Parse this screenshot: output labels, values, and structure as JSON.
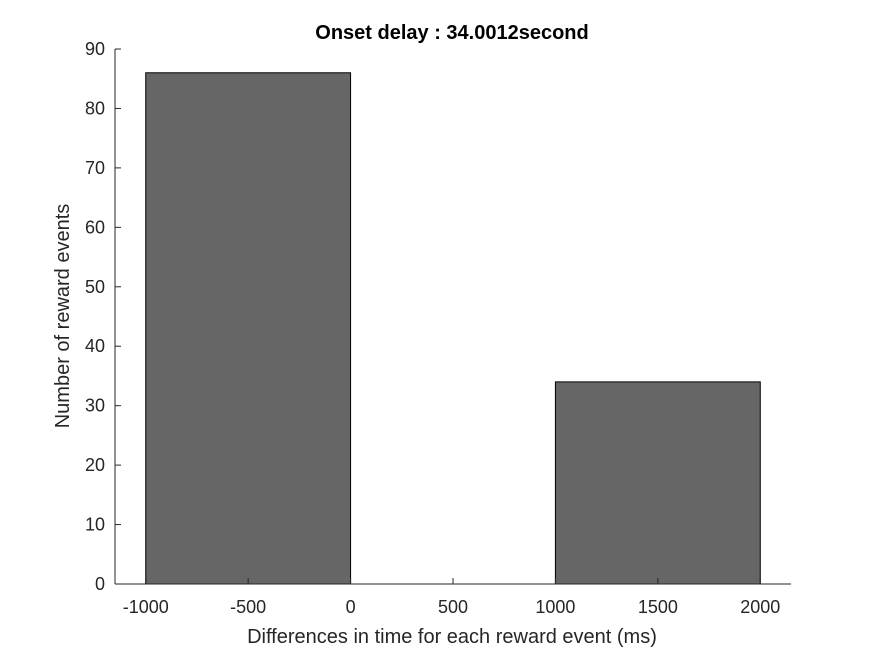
{
  "chart_data": {
    "type": "bar",
    "title": "Onset delay : 34.0012second",
    "xlabel": "Differences in time for each reward event (ms)",
    "ylabel": "Number of reward events",
    "xlim": [
      -1150,
      2150
    ],
    "ylim": [
      0,
      90
    ],
    "xticks": [
      -1000,
      -500,
      0,
      500,
      1000,
      1500,
      2000
    ],
    "xtick_labels": [
      "-1000",
      "-500",
      "0",
      "500",
      "1000",
      "1500",
      "2000"
    ],
    "yticks": [
      0,
      10,
      20,
      30,
      40,
      50,
      60,
      70,
      80,
      90
    ],
    "ytick_labels": [
      "0",
      "10",
      "20",
      "30",
      "40",
      "50",
      "60",
      "70",
      "80",
      "90"
    ],
    "bins": [
      {
        "x0": -1000,
        "x1": 0,
        "value": 86
      },
      {
        "x0": 0,
        "x1": 1000,
        "value": 0
      },
      {
        "x0": 1000,
        "x1": 2000,
        "value": 34
      }
    ],
    "bar_color": "#666666",
    "grid": false
  }
}
